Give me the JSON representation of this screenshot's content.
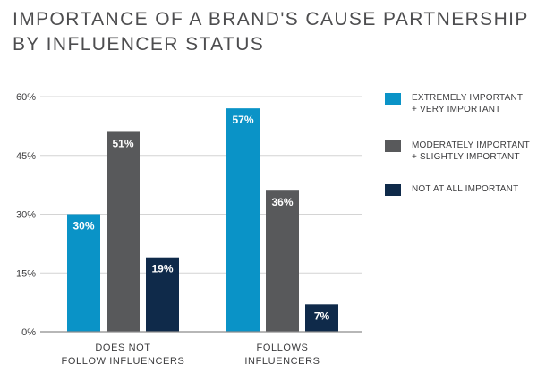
{
  "title": {
    "line1": "IMPORTANCE OF A BRAND'S CAUSE PARTNERSHIP",
    "line2": "BY INFLUENCER STATUS"
  },
  "chart_data": {
    "type": "bar",
    "title": "IMPORTANCE OF A BRAND'S CAUSE PARTNERSHIP BY INFLUENCER STATUS",
    "categories": [
      [
        "DOES NOT",
        "FOLLOW INFLUENCERS"
      ],
      [
        "FOLLOWS",
        "INFLUENCERS"
      ]
    ],
    "series": [
      {
        "name": [
          "EXTREMELY IMPORTANT",
          "+ VERY IMPORTANT"
        ],
        "color": "#0a93c7",
        "values": [
          30,
          57
        ],
        "labels": [
          "30%",
          "57%"
        ]
      },
      {
        "name": [
          "MODERATELY IMPORTANT",
          "+ SLIGHTLY IMPORTANT"
        ],
        "color": "#58595b",
        "values": [
          51,
          36
        ],
        "labels": [
          "51%",
          "36%"
        ]
      },
      {
        "name": [
          "NOT AT ALL IMPORTANT"
        ],
        "color": "#0f2a4a",
        "values": [
          19,
          7
        ],
        "labels": [
          "19%",
          "7%"
        ]
      }
    ],
    "y_ticks": [
      0,
      15,
      30,
      45,
      60
    ],
    "y_tick_labels": [
      "0%",
      "15%",
      "30%",
      "45%",
      "60%"
    ],
    "ylim": [
      0,
      60
    ],
    "grid": true,
    "legend": "right",
    "label_color": "#ffffff",
    "text_color": "#3c3c3e",
    "grid_color": "#d4d4d4"
  }
}
